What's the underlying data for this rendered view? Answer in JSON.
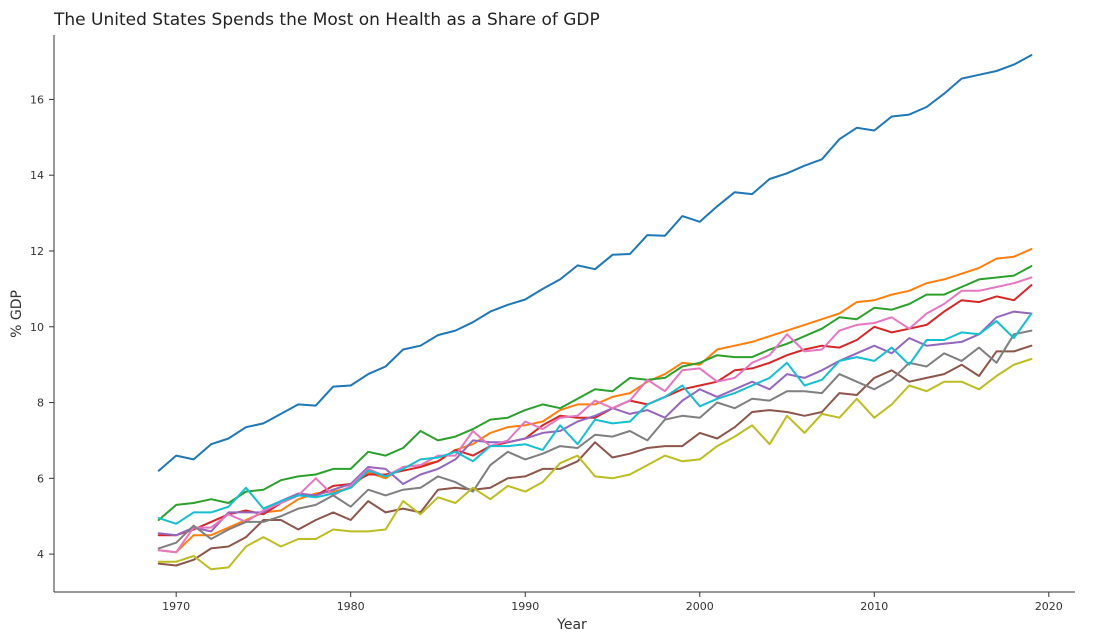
{
  "chart_data": {
    "type": "line",
    "title": "The United States Spends the Most on Health as a Share of GDP",
    "xlabel": "Year",
    "ylabel": "% GDP",
    "xlim": [
      1963,
      2021.5
    ],
    "ylim": [
      3,
      17.7
    ],
    "xticks": [
      1970,
      1980,
      1990,
      2000,
      2010,
      2020
    ],
    "yticks": [
      4,
      6,
      8,
      10,
      12,
      14,
      16
    ],
    "grid": false,
    "legend": "none",
    "x": [
      1969,
      1970,
      1971,
      1972,
      1973,
      1974,
      1975,
      1976,
      1977,
      1978,
      1979,
      1980,
      1981,
      1982,
      1983,
      1984,
      1985,
      1986,
      1987,
      1988,
      1989,
      1990,
      1991,
      1992,
      1993,
      1994,
      1995,
      1996,
      1997,
      1998,
      1999,
      2000,
      2001,
      2002,
      2003,
      2004,
      2005,
      2006,
      2007,
      2008,
      2009,
      2010,
      2011,
      2012,
      2013,
      2014,
      2015,
      2016,
      2017,
      2018,
      2019
    ],
    "series": [
      {
        "color": "#1f77b4",
        "values": [
          6.2,
          6.6,
          6.5,
          6.9,
          7.05,
          7.35,
          7.45,
          7.7,
          7.95,
          7.92,
          8.42,
          8.45,
          8.75,
          8.95,
          9.4,
          9.5,
          9.78,
          9.9,
          10.12,
          10.4,
          10.58,
          10.72,
          11.0,
          11.25,
          11.62,
          11.52,
          11.9,
          11.92,
          12.42,
          12.4,
          12.92,
          12.77,
          13.18,
          13.55,
          13.5,
          13.9,
          14.05,
          14.25,
          14.42,
          14.95,
          15.25,
          15.18,
          15.55,
          15.6,
          15.8,
          16.15,
          16.55,
          16.65,
          16.75,
          16.92,
          17.17
        ]
      },
      {
        "color": "#ff7f0e",
        "values": [
          4.1,
          4.05,
          4.5,
          4.5,
          4.7,
          4.9,
          5.1,
          5.15,
          5.45,
          5.6,
          5.65,
          5.75,
          6.15,
          6.0,
          6.3,
          6.35,
          6.45,
          6.75,
          6.9,
          7.2,
          7.35,
          7.4,
          7.5,
          7.8,
          7.95,
          7.95,
          8.15,
          8.25,
          8.55,
          8.75,
          9.05,
          9.0,
          9.4,
          9.5,
          9.6,
          9.75,
          9.9,
          10.05,
          10.2,
          10.35,
          10.65,
          10.7,
          10.85,
          10.95,
          11.15,
          11.25,
          11.4,
          11.55,
          11.8,
          11.85,
          12.05
        ]
      },
      {
        "color": "#2ca02c",
        "values": [
          4.9,
          5.3,
          5.35,
          5.45,
          5.35,
          5.65,
          5.7,
          5.95,
          6.05,
          6.1,
          6.25,
          6.25,
          6.7,
          6.6,
          6.8,
          7.25,
          7.0,
          7.1,
          7.3,
          7.55,
          7.6,
          7.8,
          7.95,
          7.85,
          8.1,
          8.35,
          8.3,
          8.65,
          8.6,
          8.65,
          8.95,
          9.05,
          9.25,
          9.2,
          9.2,
          9.4,
          9.55,
          9.75,
          9.95,
          10.25,
          10.2,
          10.5,
          10.45,
          10.6,
          10.85,
          10.85,
          11.05,
          11.25,
          11.3,
          11.35,
          11.6
        ]
      },
      {
        "color": "#d62728",
        "values": [
          4.5,
          4.5,
          4.65,
          4.85,
          5.05,
          5.15,
          5.05,
          5.35,
          5.55,
          5.55,
          5.8,
          5.85,
          6.1,
          6.1,
          6.2,
          6.3,
          6.45,
          6.75,
          6.6,
          6.85,
          6.95,
          7.05,
          7.4,
          7.65,
          7.6,
          7.6,
          7.85,
          8.05,
          7.95,
          8.15,
          8.35,
          8.45,
          8.55,
          8.85,
          8.9,
          9.05,
          9.25,
          9.4,
          9.5,
          9.45,
          9.65,
          10.0,
          9.85,
          9.95,
          10.05,
          10.4,
          10.7,
          10.65,
          10.8,
          10.7,
          11.1
        ]
      },
      {
        "color": "#9467bd",
        "values": [
          4.55,
          4.5,
          4.7,
          4.6,
          5.1,
          5.1,
          5.1,
          5.4,
          5.6,
          5.55,
          5.7,
          5.85,
          6.3,
          6.25,
          5.85,
          6.1,
          6.25,
          6.5,
          7.0,
          6.95,
          6.95,
          7.05,
          7.2,
          7.25,
          7.5,
          7.65,
          7.85,
          7.7,
          7.8,
          7.6,
          8.05,
          8.35,
          8.15,
          8.35,
          8.55,
          8.35,
          8.75,
          8.65,
          8.85,
          9.1,
          9.3,
          9.5,
          9.3,
          9.7,
          9.5,
          9.55,
          9.6,
          9.8,
          10.25,
          10.4,
          10.35
        ]
      },
      {
        "color": "#8c564b",
        "values": [
          3.75,
          3.7,
          3.85,
          4.15,
          4.2,
          4.45,
          4.9,
          4.9,
          4.65,
          4.9,
          5.1,
          4.9,
          5.4,
          5.1,
          5.2,
          5.1,
          5.7,
          5.75,
          5.7,
          5.75,
          6.0,
          6.05,
          6.25,
          6.25,
          6.45,
          6.95,
          6.55,
          6.65,
          6.8,
          6.85,
          6.85,
          7.2,
          7.05,
          7.35,
          7.75,
          7.8,
          7.75,
          7.65,
          7.75,
          8.25,
          8.2,
          8.65,
          8.85,
          8.55,
          8.65,
          8.75,
          9.0,
          8.7,
          9.35,
          9.35,
          9.5
        ]
      },
      {
        "color": "#e377c2",
        "values": [
          4.1,
          4.05,
          4.7,
          4.7,
          5.05,
          4.85,
          5.15,
          5.35,
          5.55,
          6.0,
          5.55,
          5.8,
          6.25,
          6.05,
          6.3,
          6.35,
          6.6,
          6.6,
          7.25,
          6.85,
          7.0,
          7.5,
          7.3,
          7.6,
          7.65,
          8.05,
          7.85,
          8.05,
          8.6,
          8.3,
          8.85,
          8.9,
          8.55,
          8.65,
          9.05,
          9.25,
          9.8,
          9.35,
          9.4,
          9.9,
          10.05,
          10.1,
          10.25,
          9.95,
          10.35,
          10.6,
          10.95,
          10.95,
          11.05,
          11.15,
          11.3
        ]
      },
      {
        "color": "#7f7f7f",
        "values": [
          4.15,
          4.3,
          4.75,
          4.4,
          4.65,
          4.85,
          4.85,
          5.0,
          5.2,
          5.3,
          5.55,
          5.25,
          5.7,
          5.55,
          5.7,
          5.75,
          6.05,
          5.9,
          5.65,
          6.35,
          6.7,
          6.5,
          6.65,
          6.85,
          6.8,
          7.15,
          7.1,
          7.25,
          7.0,
          7.55,
          7.65,
          7.6,
          8.0,
          7.85,
          8.1,
          8.05,
          8.3,
          8.3,
          8.25,
          8.75,
          8.55,
          8.35,
          8.6,
          9.05,
          8.95,
          9.3,
          9.1,
          9.45,
          9.05,
          9.8,
          9.9
        ]
      },
      {
        "color": "#bcbd22",
        "values": [
          3.8,
          3.8,
          3.95,
          3.6,
          3.65,
          4.2,
          4.45,
          4.2,
          4.4,
          4.4,
          4.65,
          4.6,
          4.6,
          4.65,
          5.4,
          5.05,
          5.5,
          5.35,
          5.75,
          5.45,
          5.8,
          5.65,
          5.9,
          6.4,
          6.6,
          6.05,
          6.0,
          6.1,
          6.35,
          6.6,
          6.45,
          6.5,
          6.85,
          7.1,
          7.4,
          6.9,
          7.65,
          7.2,
          7.7,
          7.6,
          8.1,
          7.6,
          7.95,
          8.45,
          8.3,
          8.55,
          8.55,
          8.35,
          8.7,
          9.0,
          9.15
        ]
      },
      {
        "color": "#17becf",
        "values": [
          4.95,
          4.8,
          5.1,
          5.1,
          5.25,
          5.75,
          5.2,
          5.4,
          5.55,
          5.5,
          5.6,
          5.75,
          6.2,
          6.05,
          6.25,
          6.5,
          6.55,
          6.7,
          6.45,
          6.85,
          6.85,
          6.9,
          6.75,
          7.4,
          6.9,
          7.55,
          7.45,
          7.5,
          7.95,
          8.15,
          8.45,
          7.9,
          8.1,
          8.25,
          8.45,
          8.65,
          9.05,
          8.45,
          8.6,
          9.1,
          9.2,
          9.1,
          9.45,
          9.0,
          9.65,
          9.65,
          9.85,
          9.8,
          10.15,
          9.7,
          10.35
        ]
      }
    ]
  }
}
